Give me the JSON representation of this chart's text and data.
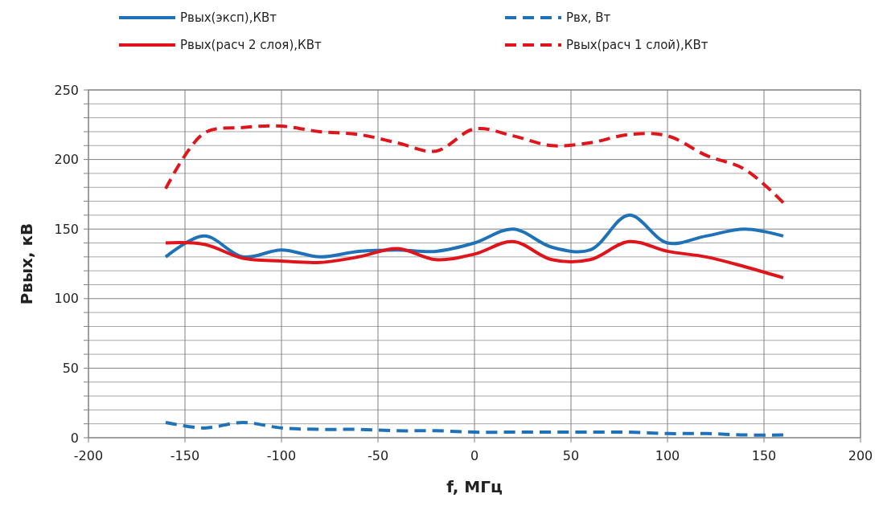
{
  "chart_data": {
    "type": "line",
    "xlabel": "f, МГц",
    "ylabel": "Рвых, кВ",
    "x": [
      -160,
      -140,
      -120,
      -100,
      -80,
      -60,
      -40,
      -20,
      0,
      20,
      40,
      60,
      80,
      100,
      120,
      140,
      160
    ],
    "series": [
      {
        "name": "Рвых(эксп),КВт",
        "color": "#1f72b8",
        "line_style": "solid",
        "values": [
          130,
          145,
          130,
          135,
          130,
          134,
          135,
          134,
          140,
          150,
          137,
          135,
          160,
          140,
          145,
          150,
          145
        ]
      },
      {
        "name": "Рвх, Вт",
        "color": "#1f72b8",
        "line_style": "dashed",
        "values": [
          11,
          7,
          11,
          7,
          6,
          6,
          5,
          5,
          4,
          4,
          4,
          4,
          4,
          3,
          3,
          2,
          2
        ]
      },
      {
        "name": "Рвых(расч 2 слоя),КВт",
        "color": "#e0141b",
        "line_style": "solid",
        "values": [
          140,
          139,
          129,
          127,
          126,
          130,
          136,
          128,
          132,
          141,
          128,
          128,
          141,
          134,
          130,
          123,
          115
        ]
      },
      {
        "name": "Рвых(расч 1 слой),КВт",
        "color": "#e0141b",
        "line_style": "dashed",
        "values": [
          179,
          219,
          223,
          224,
          220,
          218,
          212,
          206,
          222,
          217,
          210,
          212,
          218,
          217,
          203,
          193,
          169
        ]
      }
    ],
    "xlim": [
      -200,
      200
    ],
    "xticks": [
      -200,
      -150,
      -100,
      -50,
      0,
      50,
      100,
      150,
      200
    ],
    "ylim": [
      0,
      250
    ],
    "yticks": [
      0,
      {
        "value": 10,
        "label": null
      },
      {
        "value": 20,
        "label": null
      },
      {
        "value": 30,
        "label": null
      },
      {
        "value": 40,
        "label": null
      },
      50,
      {
        "value": 60,
        "label": null
      },
      {
        "value": 70,
        "label": null
      },
      {
        "value": 80,
        "label": null
      },
      {
        "value": 90,
        "label": null
      },
      100,
      {
        "value": 110,
        "label": null
      },
      {
        "value": 120,
        "label": null
      },
      {
        "value": 130,
        "label": null
      },
      {
        "value": 140,
        "label": null
      },
      150,
      {
        "value": 160,
        "label": null
      },
      {
        "value": 170,
        "label": null
      },
      {
        "value": 180,
        "label": null
      },
      {
        "value": 190,
        "label": null
      },
      200,
      {
        "value": 210,
        "label": null
      },
      {
        "value": 220,
        "label": null
      },
      {
        "value": 230,
        "label": null
      },
      {
        "value": 240,
        "label": null
      },
      250
    ],
    "grid": true,
    "legend": "top",
    "marker": "none"
  }
}
